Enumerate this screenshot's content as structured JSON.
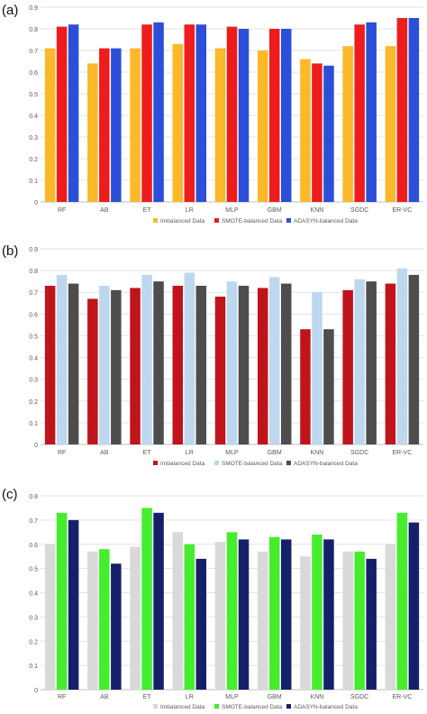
{
  "figure": {
    "panel_labels": [
      "(a)",
      "(b)",
      "(c)"
    ]
  },
  "chart_data": [
    {
      "type": "bar",
      "categories": [
        "RF",
        "AB",
        "ET",
        "LR",
        "MLP",
        "GBM",
        "KNN",
        "SGDC",
        "ER-VC"
      ],
      "ylim": [
        0,
        0.9
      ],
      "yticks": [
        "0",
        "0.1",
        "0.2",
        "0.3",
        "0.4",
        "0.5",
        "0.6",
        "0.7",
        "0.8",
        "0.9"
      ],
      "grid": true,
      "legend_position": "bottom",
      "series": [
        {
          "name": "Imbalanced Data",
          "color": "#FBB829",
          "values": [
            0.71,
            0.64,
            0.71,
            0.73,
            0.71,
            0.7,
            0.66,
            0.72,
            0.72
          ]
        },
        {
          "name": "SMOTE-balanced Data",
          "color": "#EE1C1C",
          "values": [
            0.81,
            0.71,
            0.82,
            0.82,
            0.81,
            0.8,
            0.64,
            0.82,
            0.85
          ]
        },
        {
          "name": "ADASYN-balanced Data",
          "color": "#2B4FD8",
          "values": [
            0.82,
            0.71,
            0.83,
            0.82,
            0.8,
            0.8,
            0.63,
            0.83,
            0.85
          ]
        }
      ]
    },
    {
      "type": "bar",
      "categories": [
        "RF",
        "AB",
        "ET",
        "LR",
        "MLP",
        "GBM",
        "KNN",
        "SGDC",
        "ER-VC"
      ],
      "ylim": [
        0,
        0.9
      ],
      "yticks": [
        "0",
        "0.1",
        "0.2",
        "0.3",
        "0.4",
        "0.5",
        "0.6",
        "0.7",
        "0.8",
        "0.9"
      ],
      "grid": true,
      "legend_position": "bottom",
      "series": [
        {
          "name": "Imbalanced Data",
          "color": "#C0141C",
          "values": [
            0.73,
            0.67,
            0.72,
            0.73,
            0.68,
            0.72,
            0.53,
            0.71,
            0.74
          ]
        },
        {
          "name": "SMOTE-balanced Data",
          "color": "#BDD7EE",
          "values": [
            0.78,
            0.73,
            0.78,
            0.79,
            0.75,
            0.77,
            0.7,
            0.76,
            0.81
          ]
        },
        {
          "name": "ADASYN-balanced Data",
          "color": "#4D4D4D",
          "values": [
            0.74,
            0.71,
            0.75,
            0.73,
            0.73,
            0.74,
            0.53,
            0.75,
            0.78
          ]
        }
      ]
    },
    {
      "type": "bar",
      "categories": [
        "RF",
        "AB",
        "ET",
        "LR",
        "MLP",
        "GBM",
        "KNN",
        "SGDC",
        "ER-VC"
      ],
      "ylim": [
        0,
        0.8
      ],
      "yticks": [
        "0",
        "0.1",
        "0.2",
        "0.3",
        "0.4",
        "0.5",
        "0.6",
        "0.7",
        "0.8"
      ],
      "grid": true,
      "legend_position": "bottom",
      "series": [
        {
          "name": "Imbalanced Data",
          "color": "#D9D9D9",
          "values": [
            0.6,
            0.57,
            0.59,
            0.65,
            0.61,
            0.57,
            0.55,
            0.57,
            0.6
          ]
        },
        {
          "name": "SMOTE-balanced Data",
          "color": "#44EE2C",
          "values": [
            0.73,
            0.58,
            0.75,
            0.6,
            0.65,
            0.63,
            0.64,
            0.57,
            0.73
          ]
        },
        {
          "name": "ADASYN-balanced Data",
          "color": "#15206B",
          "values": [
            0.7,
            0.52,
            0.73,
            0.54,
            0.62,
            0.62,
            0.62,
            0.54,
            0.69
          ]
        }
      ]
    }
  ]
}
